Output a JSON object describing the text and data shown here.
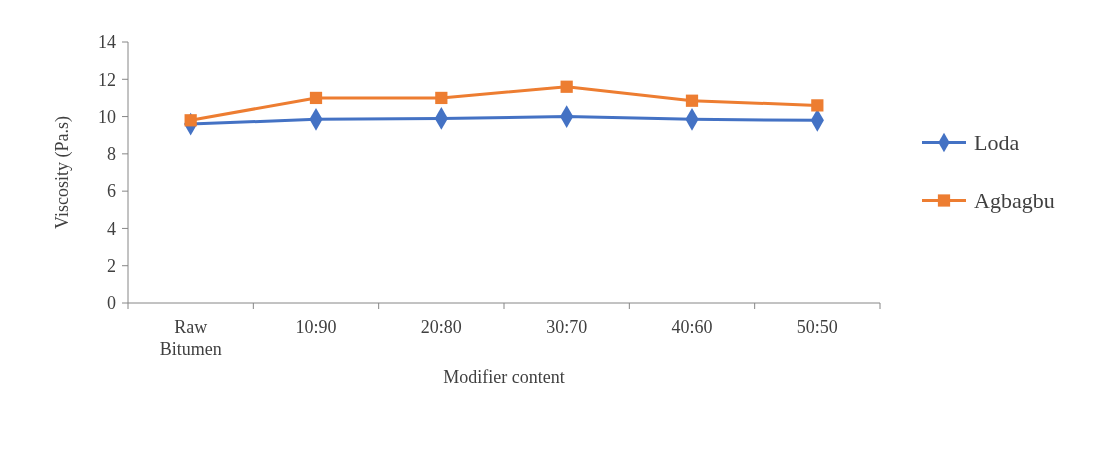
{
  "chart_data": {
    "type": "line",
    "xlabel": "Modifier content",
    "ylabel": "Viscosity (Pa.s)",
    "categories": [
      "Raw Bitumen",
      "10:90",
      "20:80",
      "30:70",
      "40:60",
      "50:50"
    ],
    "ylim": [
      0,
      14
    ],
    "yticks": [
      0,
      2,
      4,
      6,
      8,
      10,
      12,
      14
    ],
    "grid": false,
    "legend": "right",
    "line_style": "solid",
    "series": [
      {
        "name": "Loda",
        "color": "#4472c4",
        "marker": "diamond",
        "values": [
          9.6,
          9.85,
          9.9,
          10.0,
          9.85,
          9.8
        ]
      },
      {
        "name": "Agbagbu",
        "color": "#ed7d31",
        "marker": "square",
        "values": [
          9.8,
          11.0,
          11.0,
          11.6,
          10.85,
          10.6
        ]
      }
    ]
  }
}
